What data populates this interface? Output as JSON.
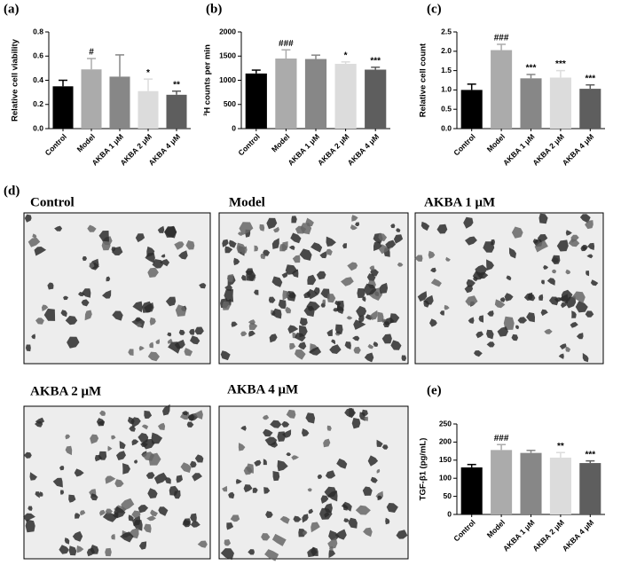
{
  "panel_labels": [
    "(a)",
    "(b)",
    "(c)",
    "(d)",
    "(e)"
  ],
  "images": [
    {
      "label": "Control"
    },
    {
      "label": "Model"
    },
    {
      "label": "AKBA 1 μM"
    },
    {
      "label": "AKBA 2 μM"
    },
    {
      "label": "AKBA 4 μM"
    }
  ],
  "chart_data": [
    {
      "type": "bar",
      "y_label": "Relative cell viability",
      "categories": [
        "Control",
        "Model",
        "AKBA 1 μM",
        "AKBA 2 μM",
        "AKBA 4 μM"
      ],
      "values": [
        0.35,
        0.49,
        0.43,
        0.31,
        0.28
      ],
      "errors": [
        0.05,
        0.09,
        0.18,
        0.1,
        0.03
      ],
      "sig_labels": [
        null,
        "#",
        null,
        "*",
        "**"
      ],
      "colors": [
        "#000000",
        "#ababab",
        "#878787",
        "#dcdcdc",
        "#5e5e5e"
      ],
      "ylim": [
        0,
        0.8
      ],
      "yticks": [
        {
          "value": 0,
          "label": "0.0"
        },
        0.2,
        0.4,
        0.6,
        0.8
      ]
    },
    {
      "type": "bar",
      "y_label": "³H counts per min",
      "categories": [
        "Control",
        "Model",
        "AKBA 1 μM",
        "AKBA 2 μM",
        "AKBA 4 μM"
      ],
      "values": [
        1140,
        1450,
        1440,
        1340,
        1220
      ],
      "errors": [
        70,
        180,
        80,
        40,
        50
      ],
      "sig_labels": [
        null,
        "###",
        null,
        "*",
        "***"
      ],
      "colors": [
        "#000000",
        "#ababab",
        "#878787",
        "#dcdcdc",
        "#5e5e5e"
      ],
      "ylim": [
        0,
        2000
      ],
      "yticks": [
        0,
        500,
        1000,
        1500,
        2000
      ]
    },
    {
      "type": "bar",
      "y_label": "Relative cell count",
      "categories": [
        "Control",
        "Model",
        "AKBA 1 μM",
        "AKBA 2 μM",
        "AKBA 4 μM"
      ],
      "values": [
        1.0,
        2.03,
        1.3,
        1.32,
        1.03
      ],
      "errors": [
        0.15,
        0.15,
        0.1,
        0.18,
        0.1
      ],
      "sig_labels": [
        null,
        "###",
        "***",
        "***",
        "***"
      ],
      "colors": [
        "#000000",
        "#ababab",
        "#878787",
        "#dcdcdc",
        "#5e5e5e"
      ],
      "ylim": [
        0,
        2.5
      ],
      "yticks": [
        {
          "value": 0,
          "label": "0.0"
        },
        0.5,
        {
          "value": 1,
          "label": "1.0"
        },
        1.5,
        {
          "value": 2,
          "label": "2.0"
        },
        2.5
      ]
    },
    {
      "type": "bar",
      "y_label": "TGF-β1 (pg/mL)",
      "categories": [
        "Control",
        "Model",
        "AKBA 1 μM",
        "AKBA 2 μM",
        "AKBA 4 μM"
      ],
      "values": [
        130,
        178,
        170,
        157,
        142
      ],
      "errors": [
        8,
        15,
        7,
        14,
        6
      ],
      "sig_labels": [
        null,
        "###",
        null,
        "**",
        "***"
      ],
      "colors": [
        "#000000",
        "#ababab",
        "#878787",
        "#dcdcdc",
        "#5e5e5e"
      ],
      "ylim": [
        0,
        250
      ],
      "yticks": [
        0,
        50,
        100,
        150,
        200,
        250
      ]
    }
  ]
}
